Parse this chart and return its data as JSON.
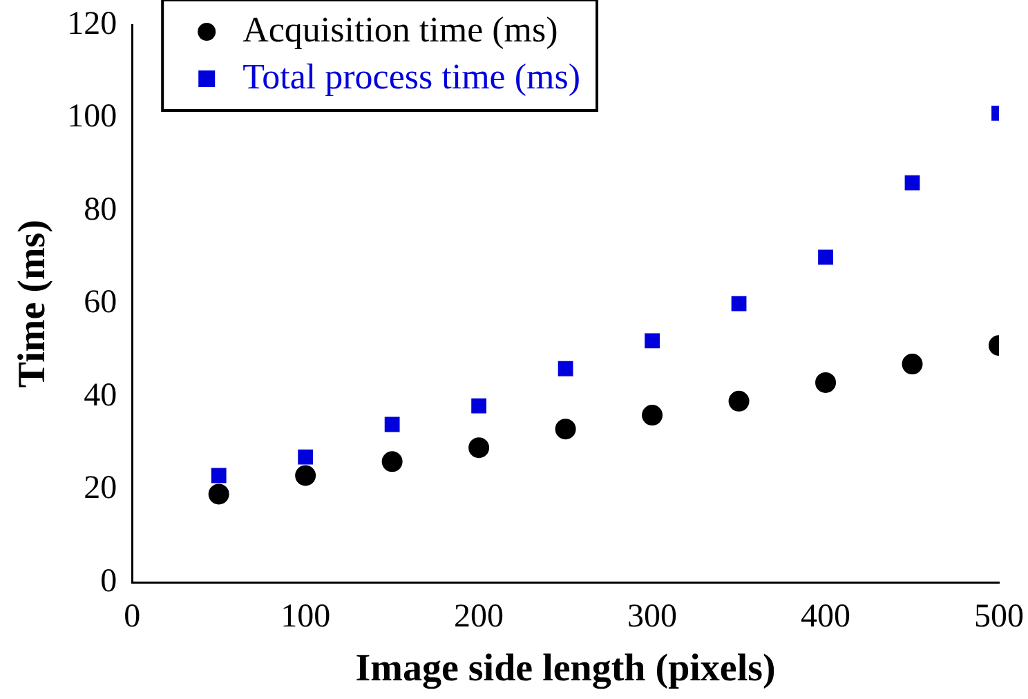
{
  "chart_data": {
    "type": "scatter",
    "xlabel": "Image side length (pixels)",
    "ylabel": "Time (ms)",
    "x": [
      50,
      100,
      150,
      200,
      250,
      300,
      350,
      400,
      450,
      500
    ],
    "xlim": [
      0,
      500
    ],
    "xticks": [
      0,
      100,
      200,
      300,
      400,
      500
    ],
    "ylim": [
      0,
      120
    ],
    "yticks": [
      0,
      20,
      40,
      60,
      80,
      100,
      120
    ],
    "grid": false,
    "legend": "top left",
    "series": [
      {
        "name": "Acquisition time (ms)",
        "color": "#000000",
        "marker": "circle",
        "values": [
          19,
          23,
          26,
          29,
          33,
          36,
          39,
          43,
          47,
          51
        ]
      },
      {
        "name": "Total process time (ms)",
        "color": "#0000dd",
        "marker": "square",
        "values": [
          23,
          27,
          34,
          38,
          46,
          52,
          60,
          70,
          86,
          101
        ]
      }
    ]
  }
}
